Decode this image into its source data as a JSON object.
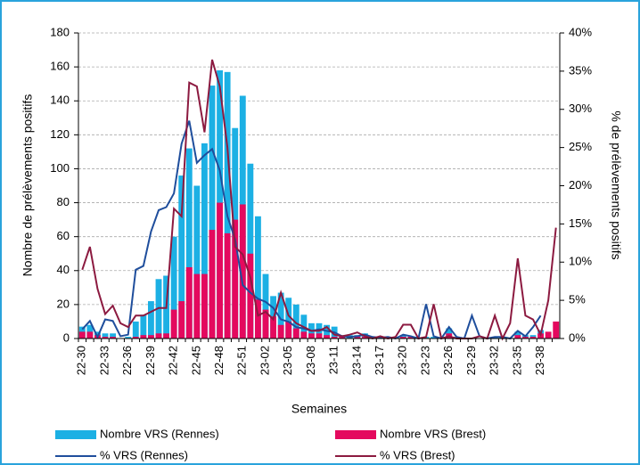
{
  "chart_data": {
    "type": "bar-line",
    "y_label": "Nombre de prélèvements positifs",
    "y2_label": "% de prélèvements positifs",
    "x_label": "Semaines",
    "categories": [
      "22-30",
      null,
      null,
      "22-33",
      null,
      null,
      "22-36",
      null,
      null,
      "22-39",
      null,
      null,
      "22-42",
      null,
      null,
      "22-45",
      null,
      null,
      "22-48",
      null,
      null,
      "22-51",
      null,
      null,
      "23-02",
      null,
      null,
      "23-05",
      null,
      null,
      "23-08",
      null,
      null,
      "23-11",
      null,
      null,
      "23-14",
      null,
      null,
      "23-17",
      null,
      null,
      "23-20",
      null,
      null,
      "23-23",
      null,
      null,
      "23-26",
      null,
      null,
      "23-29",
      null,
      null,
      "23-32",
      null,
      null,
      "23-35",
      null,
      null,
      "23-38",
      null,
      null
    ],
    "ylim": [
      0,
      180
    ],
    "yticks": [
      0,
      20,
      40,
      60,
      80,
      100,
      120,
      140,
      160,
      180
    ],
    "y2lim": [
      0,
      40
    ],
    "y2ticks": [
      {
        "value": 0,
        "label": "0%"
      },
      {
        "value": 5,
        "label": "5%"
      },
      {
        "value": 10,
        "label": "10%"
      },
      {
        "value": 15,
        "label": "15%"
      },
      {
        "value": 20,
        "label": "20%"
      },
      {
        "value": 25,
        "label": "25%"
      },
      {
        "value": 30,
        "label": "30%"
      },
      {
        "value": 35,
        "label": "35%"
      },
      {
        "value": 40,
        "label": "40%"
      }
    ],
    "grid": true,
    "series": [
      {
        "name": "Nombre VRS (Rennes)",
        "type": "bar",
        "color": "#1cb0e4",
        "values": [
          7,
          8,
          4,
          3,
          3,
          0,
          1,
          10,
          14,
          22,
          35,
          37,
          60,
          96,
          112,
          90,
          115,
          149,
          158,
          157,
          124,
          143,
          103,
          72,
          38,
          25,
          27,
          24,
          20,
          14,
          9,
          9,
          8,
          7,
          2,
          2,
          2,
          3,
          1,
          1,
          1,
          0,
          2,
          1,
          0,
          1,
          1,
          0,
          6,
          1,
          0,
          0,
          0,
          0,
          1,
          1,
          0,
          4,
          2,
          2,
          5,
          1,
          0
        ]
      },
      {
        "name": "Nombre VRS (Brest)",
        "type": "bar",
        "color": "#e4095e",
        "values": [
          4,
          4,
          2,
          1,
          1,
          0,
          0,
          1,
          2,
          2,
          3,
          3,
          17,
          22,
          42,
          38,
          38,
          64,
          80,
          62,
          70,
          79,
          50,
          23,
          17,
          13,
          8,
          10,
          6,
          4,
          3,
          3,
          2,
          1,
          1,
          0,
          1,
          1,
          0,
          0,
          0,
          0,
          1,
          1,
          0,
          0,
          0,
          0,
          3,
          0,
          0,
          0,
          0,
          0,
          0,
          0,
          0,
          2,
          1,
          1,
          3,
          4,
          10
        ]
      },
      {
        "name": "% VRS (Rennes)",
        "type": "line",
        "axis": "y2",
        "color": "#1f4e9c",
        "values": [
          1.2,
          2.3,
          0.2,
          2.5,
          2.3,
          0.3,
          0.5,
          9,
          9.5,
          14,
          16.8,
          17.2,
          19,
          25.5,
          28.5,
          23,
          24,
          24.8,
          22,
          16,
          13,
          7,
          6,
          5.2,
          4.8,
          4,
          2.5,
          2.2,
          1.5,
          1.3,
          1,
          1.2,
          1,
          0.8,
          0.3,
          0.2,
          0.3,
          0.5,
          0.2,
          0.1,
          0.2,
          0,
          0.5,
          0.3,
          0,
          4.5,
          0.3,
          0,
          1.5,
          0.2,
          0,
          3,
          0.3,
          0,
          0.2,
          0.2,
          0,
          1,
          0.3,
          1.5,
          3,
          null,
          null
        ]
      },
      {
        "name": "% VRS (Brest)",
        "type": "line",
        "axis": "y2",
        "color": "#8c1a40",
        "values": [
          9,
          12,
          6.5,
          3.2,
          4.3,
          2,
          1.5,
          3,
          3,
          3.5,
          4,
          4,
          17,
          16,
          33.5,
          33,
          27,
          36.5,
          33,
          25,
          12,
          11,
          8,
          3,
          3.5,
          2.5,
          6,
          3,
          2,
          1.5,
          1,
          1,
          1.5,
          0.5,
          0.3,
          0.5,
          0.8,
          0.3,
          0,
          0.3,
          0,
          0.2,
          1.8,
          1.8,
          0,
          0.2,
          4.5,
          0,
          0.3,
          0,
          0,
          0,
          0.3,
          0,
          3,
          0,
          2,
          10.5,
          3,
          2.5,
          0.5,
          5,
          14.5
        ]
      }
    ]
  }
}
